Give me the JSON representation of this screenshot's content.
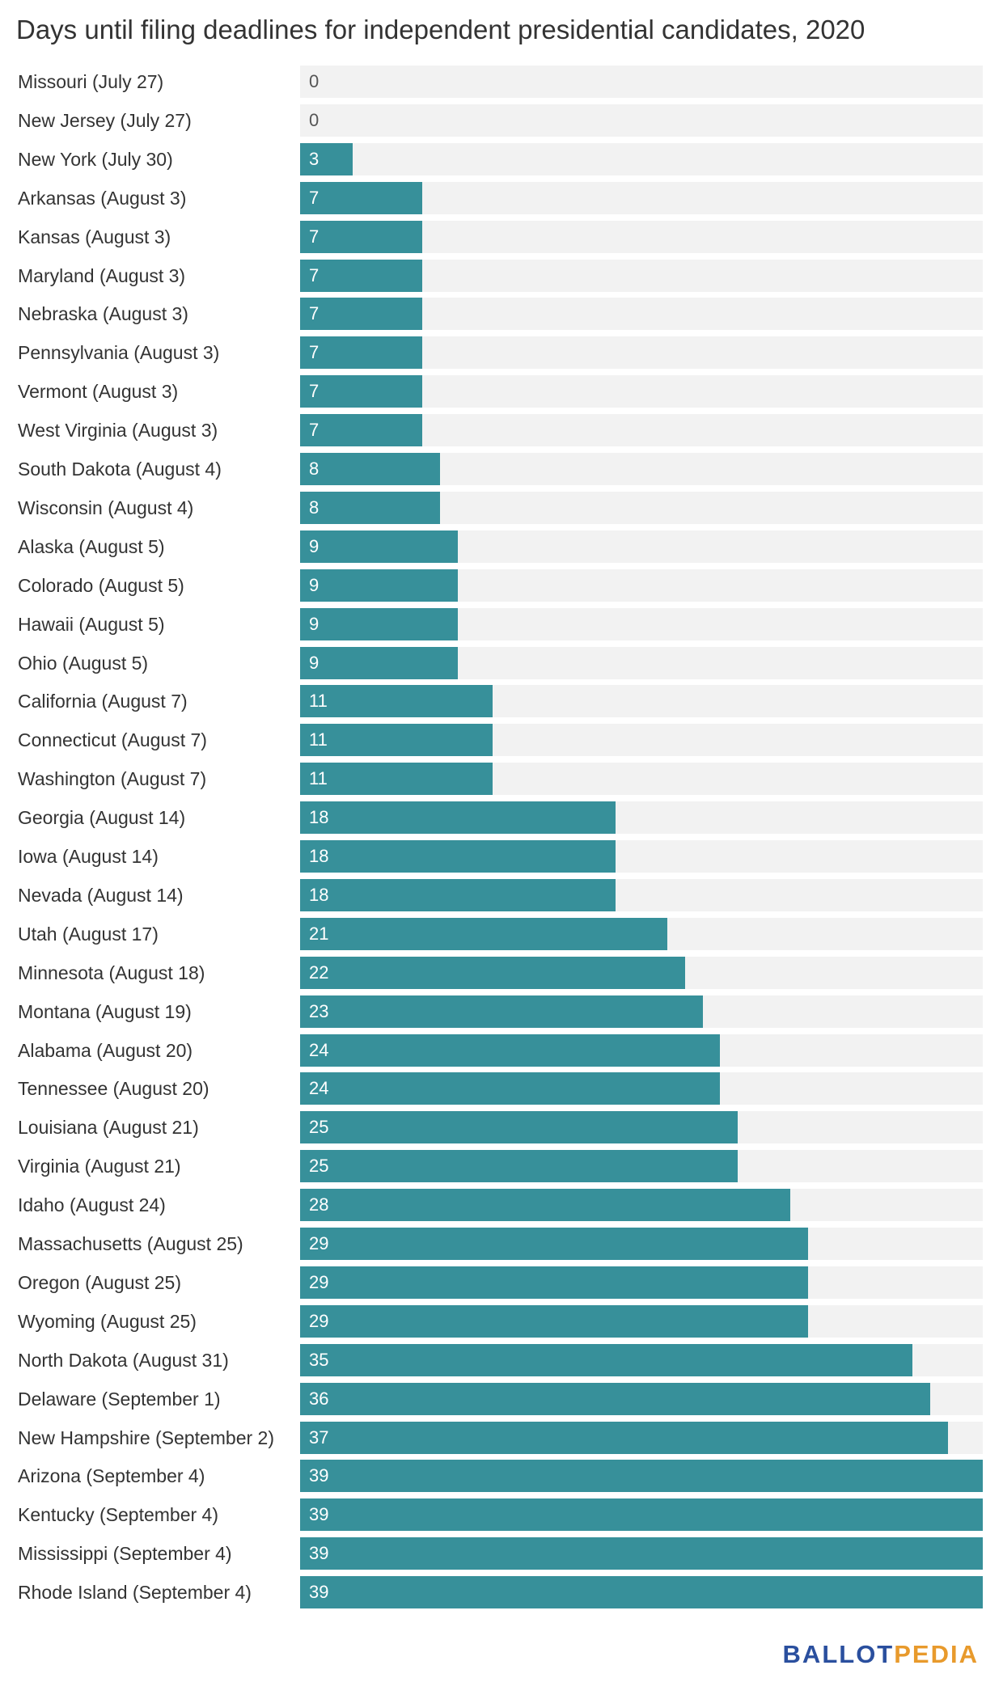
{
  "colors": {
    "bar": "#37909a",
    "track": "#f2f2f2",
    "text": "#333333",
    "logo_primary": "#2a4f9e",
    "logo_accent": "#e89a2c"
  },
  "logo": {
    "part1": "BALLOT",
    "part2": "PEDIA"
  },
  "chart_data": {
    "type": "bar",
    "orientation": "horizontal",
    "title": "Days until filing deadlines for independent presidential candidates, 2020",
    "xlim": [
      0,
      39
    ],
    "grid": false,
    "categories": [
      "Missouri (July 27)",
      "New Jersey (July 27)",
      "New York (July 30)",
      "Arkansas (August 3)",
      "Kansas (August 3)",
      "Maryland (August 3)",
      "Nebraska (August 3)",
      "Pennsylvania (August 3)",
      "Vermont (August 3)",
      "West Virginia (August 3)",
      "South Dakota (August 4)",
      "Wisconsin (August 4)",
      "Alaska (August 5)",
      "Colorado (August 5)",
      "Hawaii (August 5)",
      "Ohio (August 5)",
      "California (August 7)",
      "Connecticut (August 7)",
      "Washington (August 7)",
      "Georgia (August 14)",
      "Iowa (August 14)",
      "Nevada (August 14)",
      "Utah (August 17)",
      "Minnesota (August 18)",
      "Montana (August 19)",
      "Alabama (August 20)",
      "Tennessee (August 20)",
      "Louisiana (August 21)",
      "Virginia (August 21)",
      "Idaho (August 24)",
      "Massachusetts (August 25)",
      "Oregon (August 25)",
      "Wyoming (August 25)",
      "North Dakota (August 31)",
      "Delaware (September 1)",
      "New Hampshire (September 2)",
      "Arizona (September 4)",
      "Kentucky (September 4)",
      "Mississippi (September 4)",
      "Rhode Island (September 4)"
    ],
    "values": [
      0,
      0,
      3,
      7,
      7,
      7,
      7,
      7,
      7,
      7,
      8,
      8,
      9,
      9,
      9,
      9,
      11,
      11,
      11,
      18,
      18,
      18,
      21,
      22,
      23,
      24,
      24,
      25,
      25,
      28,
      29,
      29,
      29,
      35,
      36,
      37,
      39,
      39,
      39,
      39
    ]
  }
}
